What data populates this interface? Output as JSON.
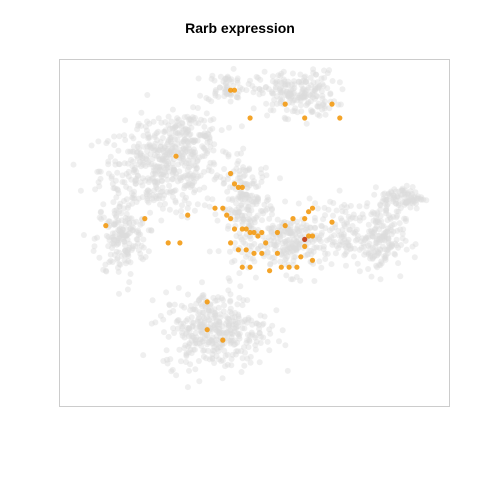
{
  "chart_data": {
    "type": "scatter",
    "title": "Rarb expression",
    "xlabel": "",
    "ylabel": "",
    "axes_shown": false,
    "xlim": [
      0,
      100
    ],
    "ylim": [
      0,
      100
    ],
    "colors": {
      "background_cells": "#dcdcdc",
      "low_expression": "#f39a12",
      "high_expression": "#c2370f",
      "frame": "#cccccc"
    },
    "background_clusters": [
      {
        "cx": 26,
        "cy": 68,
        "rx": 14,
        "ry": 12,
        "n": 420
      },
      {
        "cx": 33,
        "cy": 78,
        "rx": 8,
        "ry": 6,
        "n": 120
      },
      {
        "cx": 16,
        "cy": 48,
        "rx": 6,
        "ry": 10,
        "n": 160
      },
      {
        "cx": 43,
        "cy": 92,
        "rx": 5,
        "ry": 4,
        "n": 60
      },
      {
        "cx": 61,
        "cy": 90,
        "rx": 9,
        "ry": 6,
        "n": 200
      },
      {
        "cx": 48,
        "cy": 57,
        "rx": 6,
        "ry": 13,
        "n": 200
      },
      {
        "cx": 60,
        "cy": 47,
        "rx": 9,
        "ry": 8,
        "n": 220
      },
      {
        "cx": 73,
        "cy": 52,
        "rx": 4,
        "ry": 7,
        "n": 60
      },
      {
        "cx": 82,
        "cy": 48,
        "rx": 6,
        "ry": 9,
        "n": 180
      },
      {
        "cx": 88,
        "cy": 60,
        "rx": 5,
        "ry": 3,
        "n": 90
      },
      {
        "cx": 40,
        "cy": 22,
        "rx": 12,
        "ry": 10,
        "n": 380
      }
    ],
    "expressing_cells": {
      "x": [
        44,
        45,
        49,
        58,
        63,
        70,
        72,
        30,
        12,
        22,
        28,
        31,
        33,
        44,
        45,
        46,
        47,
        40,
        42,
        43,
        44,
        45,
        47,
        48,
        49,
        50,
        51,
        52,
        53,
        44,
        46,
        48,
        50,
        52,
        47,
        49,
        54,
        56,
        57,
        59,
        61,
        62,
        63,
        63,
        64,
        65,
        65,
        64,
        60,
        58,
        56,
        63,
        65,
        70,
        38,
        38,
        42
      ],
      "y": [
        91,
        91,
        83,
        87,
        83,
        87,
        83,
        72,
        52,
        54,
        47,
        47,
        55,
        67,
        64,
        63,
        63,
        57,
        57,
        55,
        54,
        51,
        51,
        51,
        50,
        50,
        49,
        50,
        47,
        47,
        45,
        45,
        44,
        44,
        40,
        40,
        39,
        44,
        40,
        40,
        40,
        43,
        48,
        46,
        49,
        49,
        57,
        56,
        54,
        52,
        50,
        54,
        42,
        53,
        30,
        22,
        19
      ],
      "expression": [
        0.5,
        0.5,
        0.5,
        0.5,
        0.5,
        0.5,
        0.5,
        0.5,
        0.5,
        0.5,
        0.5,
        0.5,
        0.5,
        0.5,
        0.5,
        0.5,
        0.5,
        0.5,
        0.5,
        0.5,
        0.5,
        0.5,
        0.5,
        0.5,
        0.5,
        0.5,
        0.5,
        0.5,
        0.5,
        0.5,
        0.5,
        0.5,
        0.5,
        0.5,
        0.5,
        0.5,
        0.5,
        0.5,
        0.5,
        0.5,
        0.5,
        0.5,
        1.0,
        0.5,
        0.5,
        0.5,
        0.5,
        0.5,
        0.5,
        0.5,
        0.5,
        0.5,
        0.5,
        0.5,
        0.5,
        0.5,
        0.5
      ]
    }
  }
}
